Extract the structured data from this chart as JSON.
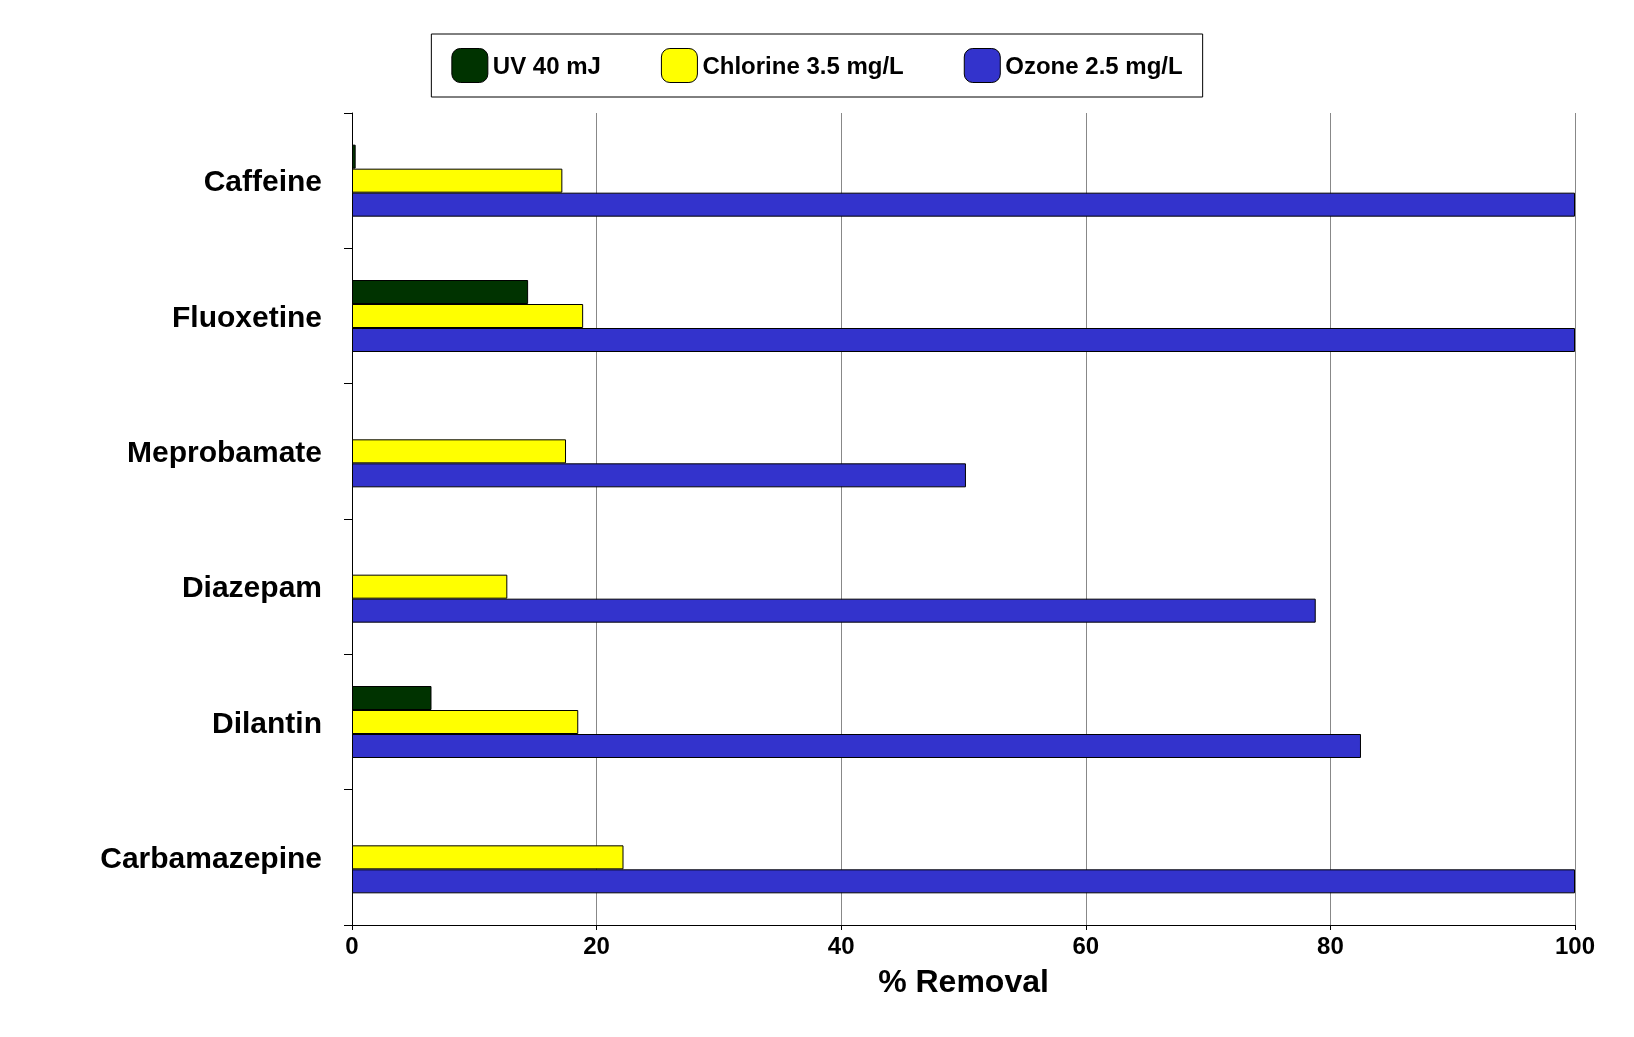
{
  "chart_data": {
    "type": "bar",
    "orientation": "horizontal",
    "xlabel": "% Removal",
    "categories": [
      "Caffeine",
      "Fluoxetine",
      "Meprobamate",
      "Diazepam",
      "Dilantin",
      "Carbamazepine"
    ],
    "series": [
      {
        "name": "UV 40 mJ",
        "color": "#003300",
        "values": [
          0.3,
          14.4,
          null,
          null,
          6.5,
          null
        ]
      },
      {
        "name": "Chlorine 3.5 mg/L",
        "color": "#ffff00",
        "values": [
          17.2,
          18.9,
          17.5,
          12.7,
          18.5,
          22.2
        ]
      },
      {
        "name": "Ozone 2.5 mg/L",
        "color": "#3333cc",
        "values": [
          100,
          100,
          50.2,
          78.8,
          82.5,
          100
        ]
      }
    ],
    "xlim": [
      0,
      100
    ],
    "xticks": [
      0,
      20,
      40,
      60,
      80,
      100
    ],
    "grid": "x",
    "legend": "top"
  }
}
